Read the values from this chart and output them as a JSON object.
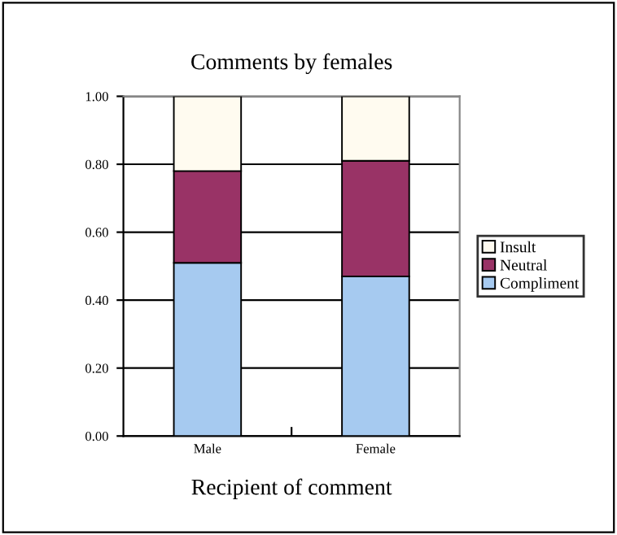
{
  "chart_data": {
    "type": "bar",
    "title": "Comments by females",
    "xlabel": "Recipient of comment",
    "categories": [
      "Male",
      "Female"
    ],
    "stacked": true,
    "series": [
      {
        "name": "Compliment",
        "color": "#a6caf0",
        "values": [
          0.51,
          0.47
        ]
      },
      {
        "name": "Neutral",
        "color": "#993366",
        "values": [
          0.27,
          0.34
        ]
      },
      {
        "name": "Insult",
        "color": "#fffbf0",
        "values": [
          0.22,
          0.19
        ]
      }
    ],
    "ylim": [
      0,
      1
    ],
    "yticks": [
      {
        "value": 0,
        "label": "0.00"
      },
      {
        "value": 0.2,
        "label": "0.20"
      },
      {
        "value": 0.4,
        "label": "0.40"
      },
      {
        "value": 0.6,
        "label": "0.60"
      },
      {
        "value": 0.8,
        "label": "0.80"
      },
      {
        "value": 1,
        "label": "1.00"
      }
    ],
    "grid": "y",
    "legend": "right"
  }
}
